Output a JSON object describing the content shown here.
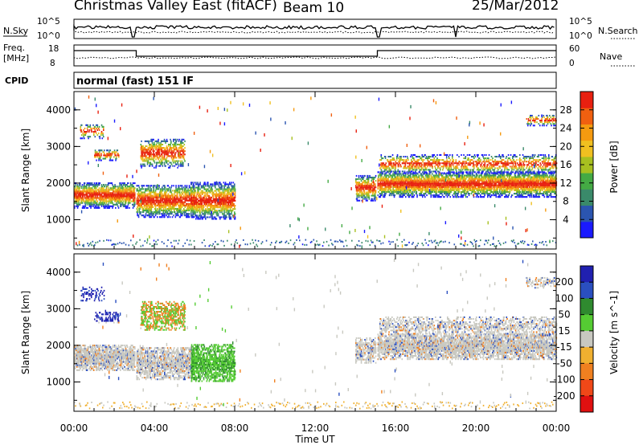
{
  "header": {
    "title": "Christmas Valley East (fitACF)",
    "beam": "Beam 10",
    "date": "25/Mar/2012"
  },
  "status_panels": {
    "nsky_label": "N.Sky",
    "nsky_ticks": [
      "10^5",
      "10^0"
    ],
    "nsearch_label": "N.Search",
    "freq_label_1": "Freq.",
    "freq_label_2": "[MHz]",
    "freq_ticks": [
      "18",
      "8"
    ],
    "nave_label": "Nave",
    "nave_ticks": [
      "60",
      "0"
    ],
    "cpid_label": "CPID",
    "cpid_text": "normal (fast) 151 IF"
  },
  "chart_data": [
    {
      "type": "heatmap",
      "name": "power",
      "ylabel": "Slant Range [km]",
      "yticks": [
        "1000",
        "2000",
        "3000",
        "4000"
      ],
      "ylim": [
        200,
        4500
      ],
      "xlim": [
        0,
        24
      ],
      "colorbar_label": "Power [dB]",
      "colorbar_ticks": [
        "4",
        "8",
        "12",
        "16",
        "20",
        "24",
        "28"
      ],
      "colors": [
        "#1a1aff",
        "#2b55b0",
        "#3a8a6a",
        "#44aa44",
        "#a8c020",
        "#f0c020",
        "#f59a10",
        "#f06010",
        "#e82010"
      ]
    },
    {
      "type": "heatmap",
      "name": "velocity",
      "ylabel": "Slant Range [km]",
      "yticks": [
        "1000",
        "2000",
        "3000",
        "4000"
      ],
      "ylim": [
        200,
        4500
      ],
      "xlim": [
        0,
        24
      ],
      "colorbar_label": "Velocity [m s^-1]",
      "colorbar_ticks": [
        "200",
        "100",
        "50",
        "15",
        "-15",
        "-50",
        "-100",
        "-200"
      ],
      "colors": [
        "#2020b0",
        "#2a4fc0",
        "#2f8a2f",
        "#55cc33",
        "#c8c8c0",
        "#f0b030",
        "#f08020",
        "#f04818",
        "#e01010"
      ]
    }
  ],
  "xaxis": {
    "label": "Time UT",
    "ticks": [
      "00:00",
      "04:00",
      "08:00",
      "12:00",
      "16:00",
      "20:00",
      "00:00"
    ]
  }
}
